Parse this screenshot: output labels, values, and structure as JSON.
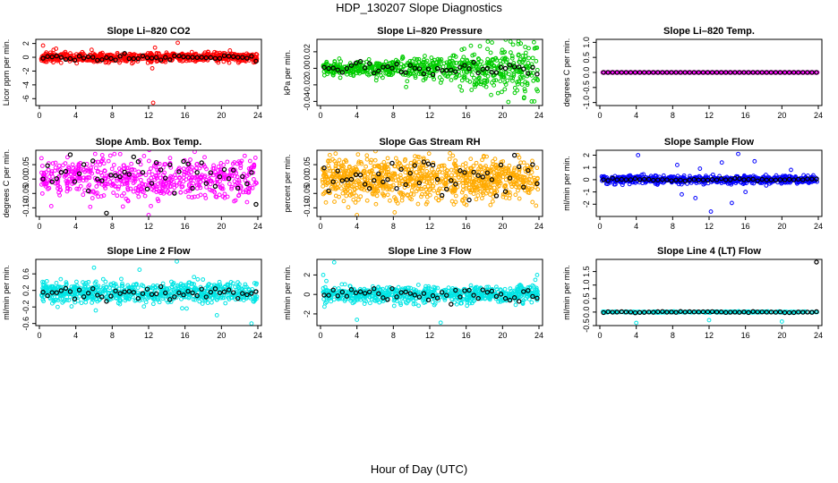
{
  "figure": {
    "title": "HDP_130207  Slope Diagnostics",
    "xlabel": "Hour of Day (UTC)"
  },
  "chart_data": [
    {
      "type": "scatter",
      "title": "Slope Li–820 CO2",
      "ylabel": "Licor ppm per min.",
      "xlim": [
        0,
        24
      ],
      "x_ticks": [
        "0",
        "4",
        "8",
        "12",
        "16",
        "20",
        "24"
      ],
      "ylim": [
        -7,
        2.6
      ],
      "y_ticks": [
        -6,
        -4,
        -2,
        0,
        2
      ],
      "y_tick_labels": [
        "-6",
        "-4",
        "-2",
        "0",
        "2"
      ],
      "color": "#ff0000",
      "center": 0.0,
      "spread": 0.35,
      "n": 700,
      "seed": 11,
      "black_center": 0.0,
      "black_spread": 0.2,
      "outliers": [
        [
          12.5,
          -6.6
        ],
        [
          12.4,
          -1.6
        ],
        [
          12.7,
          1.4
        ],
        [
          15.2,
          2.1
        ],
        [
          0.4,
          1.7
        ]
      ]
    },
    {
      "type": "scatter",
      "title": "Slope Li–820 Pressure",
      "ylabel": "kPa per min.",
      "xlim": [
        0,
        24
      ],
      "x_ticks": [
        "0",
        "4",
        "8",
        "12",
        "16",
        "20",
        "24"
      ],
      "ylim": [
        -0.045,
        0.035
      ],
      "y_ticks": [
        -0.04,
        -0.02,
        0.0,
        0.02
      ],
      "y_tick_labels": [
        "-0.04",
        "-0.02",
        "0.00",
        "0.02"
      ],
      "color": "#00cc00",
      "center": 0.0,
      "spread": 0.004,
      "spread_growth": 0.9,
      "n": 700,
      "seed": 23,
      "black_center": -0.002,
      "black_spread": 0.004,
      "outliers": [
        [
          23.2,
          -0.04
        ],
        [
          22.0,
          0.03
        ],
        [
          19.5,
          -0.03
        ]
      ]
    },
    {
      "type": "scatter",
      "title": "Slope Li–820 Temp.",
      "ylabel": "degrees C per min.",
      "xlim": [
        0,
        24
      ],
      "x_ticks": [
        "0",
        "4",
        "8",
        "12",
        "16",
        "20",
        "24"
      ],
      "ylim": [
        -1.1,
        1.1
      ],
      "y_ticks": [
        -1.0,
        -0.5,
        0.0,
        0.5,
        1.0
      ],
      "y_tick_labels": [
        "-1.0",
        "-0.5",
        "0.0",
        "0.5",
        "1.0"
      ],
      "color": "#ff00ff",
      "center": 0.0,
      "spread": 0.0,
      "n": 160,
      "seed": 31,
      "regular": true,
      "black_center": 0.0,
      "black_spread": 0.0,
      "outliers": []
    },
    {
      "type": "scatter",
      "title": "Slope Amb. Box Temp.",
      "ylabel": "degrees C per min.",
      "xlim": [
        0,
        24
      ],
      "x_ticks": [
        "0",
        "4",
        "8",
        "12",
        "16",
        "20",
        "24"
      ],
      "ylim": [
        -0.13,
        0.1
      ],
      "y_ticks": [
        -0.1,
        -0.05,
        0.0,
        0.05
      ],
      "y_tick_labels": [
        "-0.10",
        "-0.05",
        "0.00",
        "0.05"
      ],
      "color": "#ff00ff",
      "center": 0.0,
      "spread": 0.035,
      "n": 600,
      "seed": 47,
      "black_center": 0.0,
      "black_spread": 0.035,
      "outliers": [
        [
          12.0,
          -0.125
        ],
        [
          11.5,
          0.08
        ]
      ]
    },
    {
      "type": "scatter",
      "title": "Slope Gas Stream RH",
      "ylabel": "percent per min.",
      "xlim": [
        0,
        24
      ],
      "x_ticks": [
        "0",
        "4",
        "8",
        "12",
        "16",
        "20",
        "24"
      ],
      "ylim": [
        -0.13,
        0.1
      ],
      "y_ticks": [
        -0.1,
        -0.05,
        0.0,
        0.05
      ],
      "y_tick_labels": [
        "-0.10",
        "-0.05",
        "0.00",
        "0.05"
      ],
      "color": "#ffaa00",
      "center": 0.0,
      "spread": 0.035,
      "n": 900,
      "seed": 59,
      "black_center": 0.0,
      "black_spread": 0.035,
      "outliers": [
        [
          4.0,
          -0.125
        ],
        [
          16.5,
          0.07
        ]
      ]
    },
    {
      "type": "scatter",
      "title": "Slope Sample Flow",
      "ylabel": "ml/min per min.",
      "xlim": [
        0,
        24
      ],
      "x_ticks": [
        "0",
        "4",
        "8",
        "12",
        "16",
        "20",
        "24"
      ],
      "ylim": [
        -3,
        2.4
      ],
      "y_ticks": [
        -2,
        -1,
        0,
        1,
        2
      ],
      "y_tick_labels": [
        "-2",
        "-1",
        "0",
        "1",
        "2"
      ],
      "color": "#0000ff",
      "center": 0.0,
      "spread": 0.15,
      "n": 700,
      "seed": 71,
      "black_center": 0.0,
      "black_spread": 0.05,
      "outliers": [
        [
          4.2,
          2.0
        ],
        [
          9.0,
          -1.2
        ],
        [
          12.2,
          -2.6
        ],
        [
          15.2,
          2.1
        ],
        [
          14.5,
          -1.9
        ],
        [
          10.5,
          -1.5
        ],
        [
          17.0,
          1.5
        ],
        [
          8.5,
          1.2
        ],
        [
          16.0,
          -1.0
        ],
        [
          21.0,
          0.8
        ],
        [
          13.4,
          1.4
        ],
        [
          11.0,
          0.9
        ]
      ]
    },
    {
      "type": "scatter",
      "title": "Slope Line 2 Flow",
      "ylabel": "ml/min per min.",
      "xlim": [
        0,
        24
      ],
      "x_ticks": [
        "0",
        "4",
        "8",
        "12",
        "16",
        "20",
        "24"
      ],
      "ylim": [
        -0.65,
        0.95
      ],
      "y_ticks": [
        -0.6,
        -0.2,
        0.2,
        0.6
      ],
      "y_tick_labels": [
        "-0.6",
        "-0.2",
        "0.2",
        "0.6"
      ],
      "color": "#00e5e5",
      "center": 0.15,
      "spread": 0.13,
      "n": 700,
      "seed": 83,
      "black_center": 0.12,
      "black_spread": 0.08,
      "outliers": [
        [
          15.1,
          0.9
        ],
        [
          23.3,
          -0.6
        ],
        [
          6.0,
          0.75
        ],
        [
          19.5,
          -0.4
        ],
        [
          11.0,
          0.7
        ]
      ]
    },
    {
      "type": "scatter",
      "title": "Slope Line 3 Flow",
      "ylabel": "ml/min per min.",
      "xlim": [
        0,
        24
      ],
      "x_ticks": [
        "0",
        "4",
        "8",
        "12",
        "16",
        "20",
        "24"
      ],
      "ylim": [
        -3.2,
        3.6
      ],
      "y_ticks": [
        -2,
        0,
        2
      ],
      "y_tick_labels": [
        "-2",
        "0",
        "2"
      ],
      "color": "#00e5e5",
      "center": 0.0,
      "spread": 0.45,
      "n": 700,
      "seed": 97,
      "black_center": 0.0,
      "black_spread": 0.35,
      "outliers": [
        [
          1.5,
          3.3
        ],
        [
          4.0,
          -2.6
        ],
        [
          13.2,
          -2.9
        ],
        [
          23.8,
          2.0
        ],
        [
          23.6,
          1.5
        ],
        [
          0.3,
          2.0
        ]
      ]
    },
    {
      "type": "scatter",
      "title": "Slope Line 4 (LT) Flow",
      "ylabel": "ml/min per min.",
      "xlim": [
        0,
        24
      ],
      "x_ticks": [
        "0",
        "4",
        "8",
        "12",
        "16",
        "20",
        "24"
      ],
      "ylim": [
        -0.5,
        1.95
      ],
      "y_ticks": [
        -0.5,
        0.0,
        0.5,
        1.0,
        1.5
      ],
      "y_tick_labels": [
        "-0.5",
        "0.0",
        "0.5",
        "1.0",
        "1.5"
      ],
      "color": "#00e5e5",
      "center": 0.0,
      "spread": 0.01,
      "n": 300,
      "seed": 109,
      "black_center": 0.0,
      "black_spread": 0.01,
      "outliers": [
        [
          4.0,
          -0.4
        ],
        [
          12.0,
          -0.3
        ],
        [
          20.0,
          -0.35
        ]
      ],
      "black_outliers": [
        [
          23.8,
          1.85
        ]
      ]
    }
  ]
}
